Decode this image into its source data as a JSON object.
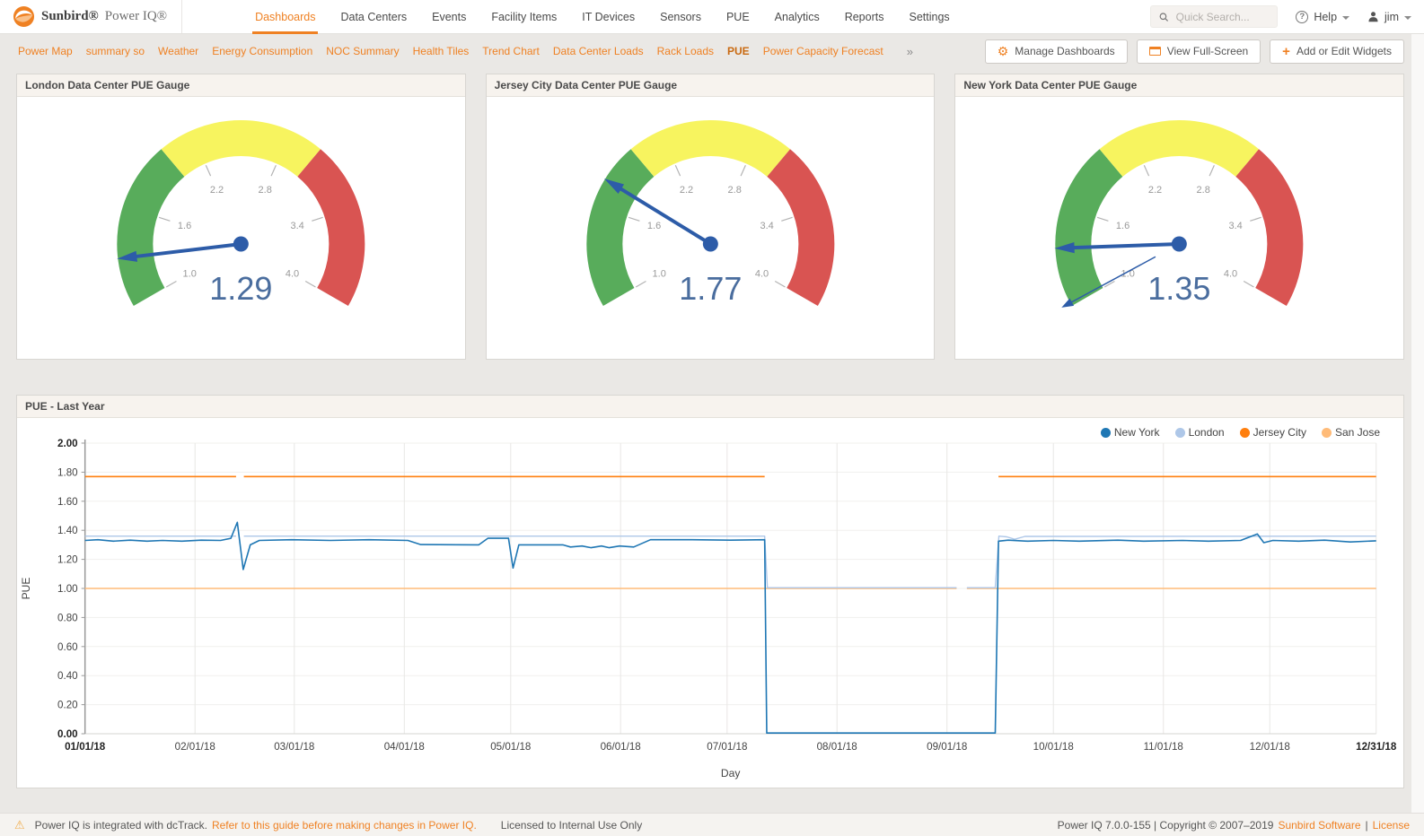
{
  "header": {
    "brand": {
      "name": "Sunbird®",
      "product": "Power IQ®"
    },
    "nav_items": [
      {
        "label": "Dashboards",
        "active": true
      },
      {
        "label": "Data Centers",
        "active": false
      },
      {
        "label": "Events",
        "active": false
      },
      {
        "label": "Facility Items",
        "active": false
      },
      {
        "label": "IT Devices",
        "active": false
      },
      {
        "label": "Sensors",
        "active": false
      },
      {
        "label": "PUE",
        "active": false
      },
      {
        "label": "Analytics",
        "active": false
      },
      {
        "label": "Reports",
        "active": false
      },
      {
        "label": "Settings",
        "active": false
      }
    ],
    "search": {
      "placeholder": "Quick Search...",
      "value": ""
    },
    "help_label": "Help",
    "user_label": "jim"
  },
  "dashboard_bar": {
    "tabs": [
      {
        "label": "Power Map",
        "active": false
      },
      {
        "label": "summary so",
        "active": false
      },
      {
        "label": "Weather",
        "active": false
      },
      {
        "label": "Energy Consumption",
        "active": false
      },
      {
        "label": "NOC Summary",
        "active": false
      },
      {
        "label": "Health Tiles",
        "active": false
      },
      {
        "label": "Trend Chart",
        "active": false
      },
      {
        "label": "Data Center Loads",
        "active": false
      },
      {
        "label": "Rack Loads",
        "active": false
      },
      {
        "label": "PUE",
        "active": true
      },
      {
        "label": "Power Capacity Forecast",
        "active": false
      }
    ],
    "overflow_icon": "»",
    "buttons": [
      {
        "label": "Manage Dashboards",
        "icon": "gear"
      },
      {
        "label": "View Full-Screen",
        "icon": "fullscreen"
      },
      {
        "label": "Add or Edit Widgets",
        "icon": "plus"
      }
    ]
  },
  "gauges": [
    {
      "title": "London Data Center PUE Gauge",
      "value": 1.29,
      "value_display": "1.29",
      "min": 1.0,
      "max": 4.0,
      "tick_values": [
        1.0,
        1.6,
        2.2,
        2.8,
        3.4,
        4.0
      ],
      "tick_labels": [
        "1.0",
        "1.6",
        "2.2",
        "2.8",
        "3.4",
        "4.0"
      ],
      "zones": [
        {
          "from": 1.0,
          "to": 2.0,
          "color": "#58ac5b"
        },
        {
          "from": 2.0,
          "to": 3.0,
          "color": "#f7f45f"
        },
        {
          "from": 3.0,
          "to": 4.0,
          "color": "#d95452"
        }
      ],
      "needle_color": "#2d5ca8",
      "value_color": "#4a6d9e"
    },
    {
      "title": "Jersey City Data Center PUE Gauge",
      "value": 1.77,
      "value_display": "1.77",
      "min": 1.0,
      "max": 4.0,
      "tick_values": [
        1.0,
        1.6,
        2.2,
        2.8,
        3.4,
        4.0
      ],
      "tick_labels": [
        "1.0",
        "1.6",
        "2.2",
        "2.8",
        "3.4",
        "4.0"
      ],
      "zones": [
        {
          "from": 1.0,
          "to": 2.0,
          "color": "#58ac5b"
        },
        {
          "from": 2.0,
          "to": 3.0,
          "color": "#f7f45f"
        },
        {
          "from": 3.0,
          "to": 4.0,
          "color": "#d95452"
        }
      ],
      "needle_color": "#2d5ca8",
      "value_color": "#4a6d9e"
    },
    {
      "title": "New York Data Center PUE Gauge",
      "value": 1.35,
      "value_display": "1.35",
      "secondary_value": 1.02,
      "min": 1.0,
      "max": 4.0,
      "tick_values": [
        1.0,
        1.6,
        2.2,
        2.8,
        3.4,
        4.0
      ],
      "tick_labels": [
        "1.0",
        "1.6",
        "2.2",
        "2.8",
        "3.4",
        "4.0"
      ],
      "zones": [
        {
          "from": 1.0,
          "to": 2.0,
          "color": "#58ac5b"
        },
        {
          "from": 2.0,
          "to": 3.0,
          "color": "#f7f45f"
        },
        {
          "from": 3.0,
          "to": 4.0,
          "color": "#d95452"
        }
      ],
      "needle_color": "#2d5ca8",
      "value_color": "#4a6d9e"
    }
  ],
  "chart_data": {
    "type": "line",
    "title": "PUE - Last Year",
    "xlabel": "Day",
    "ylabel": "PUE",
    "ylim": [
      0.0,
      2.0
    ],
    "grid": true,
    "legend_position": "top-right",
    "yticks": [
      {
        "label": "0.00",
        "value": 0.0,
        "bold": true
      },
      {
        "label": "0.20",
        "value": 0.2,
        "bold": false
      },
      {
        "label": "0.40",
        "value": 0.4,
        "bold": false
      },
      {
        "label": "0.60",
        "value": 0.6,
        "bold": false
      },
      {
        "label": "0.80",
        "value": 0.8,
        "bold": false
      },
      {
        "label": "1.00",
        "value": 1.0,
        "bold": false
      },
      {
        "label": "1.20",
        "value": 1.2,
        "bold": false
      },
      {
        "label": "1.40",
        "value": 1.4,
        "bold": false
      },
      {
        "label": "1.60",
        "value": 1.6,
        "bold": false
      },
      {
        "label": "1.80",
        "value": 1.8,
        "bold": false
      },
      {
        "label": "2.00",
        "value": 2.0,
        "bold": true
      }
    ],
    "xticks": [
      {
        "label": "01/01/18",
        "pos": 0.0,
        "bold": true
      },
      {
        "label": "02/01/18",
        "pos": 0.0852,
        "bold": false
      },
      {
        "label": "03/01/18",
        "pos": 0.1621,
        "bold": false
      },
      {
        "label": "04/01/18",
        "pos": 0.2473,
        "bold": false
      },
      {
        "label": "05/01/18",
        "pos": 0.3297,
        "bold": false
      },
      {
        "label": "06/01/18",
        "pos": 0.4148,
        "bold": false
      },
      {
        "label": "07/01/18",
        "pos": 0.4973,
        "bold": false
      },
      {
        "label": "08/01/18",
        "pos": 0.5824,
        "bold": false
      },
      {
        "label": "09/01/18",
        "pos": 0.6676,
        "bold": false
      },
      {
        "label": "10/01/18",
        "pos": 0.75,
        "bold": false
      },
      {
        "label": "11/01/18",
        "pos": 0.8352,
        "bold": false
      },
      {
        "label": "12/01/18",
        "pos": 0.9176,
        "bold": false
      },
      {
        "label": "12/31/18",
        "pos": 1.0,
        "bold": true
      }
    ],
    "series": [
      {
        "name": "New York",
        "color": "#1f77b4",
        "width": 1.6,
        "segments": [
          [
            [
              0,
              1.33
            ],
            [
              0.01,
              1.335
            ],
            [
              0.022,
              1.325
            ],
            [
              0.035,
              1.332
            ],
            [
              0.048,
              1.325
            ],
            [
              0.06,
              1.33
            ],
            [
              0.075,
              1.325
            ],
            [
              0.09,
              1.332
            ],
            [
              0.105,
              1.33
            ],
            [
              0.113,
              1.345
            ],
            [
              0.118,
              1.455
            ],
            [
              0.1225,
              1.13
            ],
            [
              0.128,
              1.3
            ],
            [
              0.135,
              1.33
            ],
            [
              0.16,
              1.335
            ],
            [
              0.19,
              1.33
            ],
            [
              0.22,
              1.335
            ],
            [
              0.25,
              1.33
            ],
            [
              0.26,
              1.302
            ],
            [
              0.305,
              1.3
            ],
            [
              0.312,
              1.345
            ],
            [
              0.328,
              1.345
            ],
            [
              0.3315,
              1.14
            ],
            [
              0.336,
              1.3
            ],
            [
              0.37,
              1.3
            ],
            [
              0.376,
              1.285
            ],
            [
              0.385,
              1.292
            ],
            [
              0.392,
              1.28
            ],
            [
              0.4,
              1.292
            ],
            [
              0.406,
              1.28
            ],
            [
              0.414,
              1.292
            ],
            [
              0.425,
              1.285
            ],
            [
              0.438,
              1.335
            ],
            [
              0.47,
              1.335
            ],
            [
              0.5,
              1.332
            ],
            [
              0.5264,
              1.335
            ],
            [
              0.528,
              0.005
            ],
            [
              0.705,
              0.005
            ],
            [
              0.7075,
              1.325
            ],
            [
              0.715,
              1.332
            ],
            [
              0.73,
              1.325
            ],
            [
              0.75,
              1.33
            ],
            [
              0.77,
              1.325
            ],
            [
              0.8,
              1.332
            ],
            [
              0.82,
              1.325
            ],
            [
              0.85,
              1.33
            ],
            [
              0.87,
              1.325
            ],
            [
              0.895,
              1.33
            ],
            [
              0.908,
              1.375
            ],
            [
              0.913,
              1.315
            ],
            [
              0.92,
              1.33
            ],
            [
              0.94,
              1.325
            ],
            [
              0.96,
              1.332
            ],
            [
              0.98,
              1.32
            ],
            [
              1,
              1.328
            ]
          ]
        ]
      },
      {
        "name": "London",
        "color": "#aec7e8",
        "width": 1.4,
        "segments": [
          [
            [
              0,
              1.36
            ],
            [
              0.117,
              1.36
            ]
          ],
          [
            [
              0.123,
              1.36
            ],
            [
              0.5264,
              1.36
            ],
            [
              0.5285,
              1.005
            ],
            [
              0.675,
              1.005
            ]
          ],
          [
            [
              0.683,
              1.005
            ],
            [
              0.705,
              1.005
            ],
            [
              0.7078,
              1.36
            ],
            [
              0.714,
              1.355
            ],
            [
              0.72,
              1.338
            ],
            [
              0.728,
              1.358
            ],
            [
              1,
              1.36
            ]
          ]
        ]
      },
      {
        "name": "Jersey City",
        "color": "#ff7f0e",
        "width": 1.6,
        "segments": [
          [
            [
              0,
              1.77
            ],
            [
              0.117,
              1.77
            ]
          ],
          [
            [
              0.123,
              1.77
            ],
            [
              0.5264,
              1.77
            ]
          ],
          [
            [
              0.7075,
              1.77
            ],
            [
              1,
              1.77
            ]
          ]
        ]
      },
      {
        "name": "San Jose",
        "color": "#ffbb78",
        "width": 1.4,
        "segments": [
          [
            [
              0,
              1.0
            ],
            [
              0.675,
              1.0
            ]
          ],
          [
            [
              0.683,
              1.0
            ],
            [
              1,
              1.0
            ]
          ]
        ]
      }
    ]
  },
  "footer": {
    "warning_text": "Power IQ is integrated with dcTrack.",
    "warning_link": "Refer to this guide before making changes in Power IQ.",
    "license_note": "Licensed to Internal Use Only",
    "version_text": "Power IQ 7.0.0-155 | Copyright © 2007–2019",
    "vendor_link": "Sunbird Software",
    "separator": "|",
    "license_link": "License"
  },
  "colors": {
    "accent_orange": "#ef8123",
    "gauge_green": "#58ac5b",
    "gauge_yellow": "#f7f45f",
    "gauge_red": "#d95452",
    "needle_blue": "#2d5ca8"
  }
}
